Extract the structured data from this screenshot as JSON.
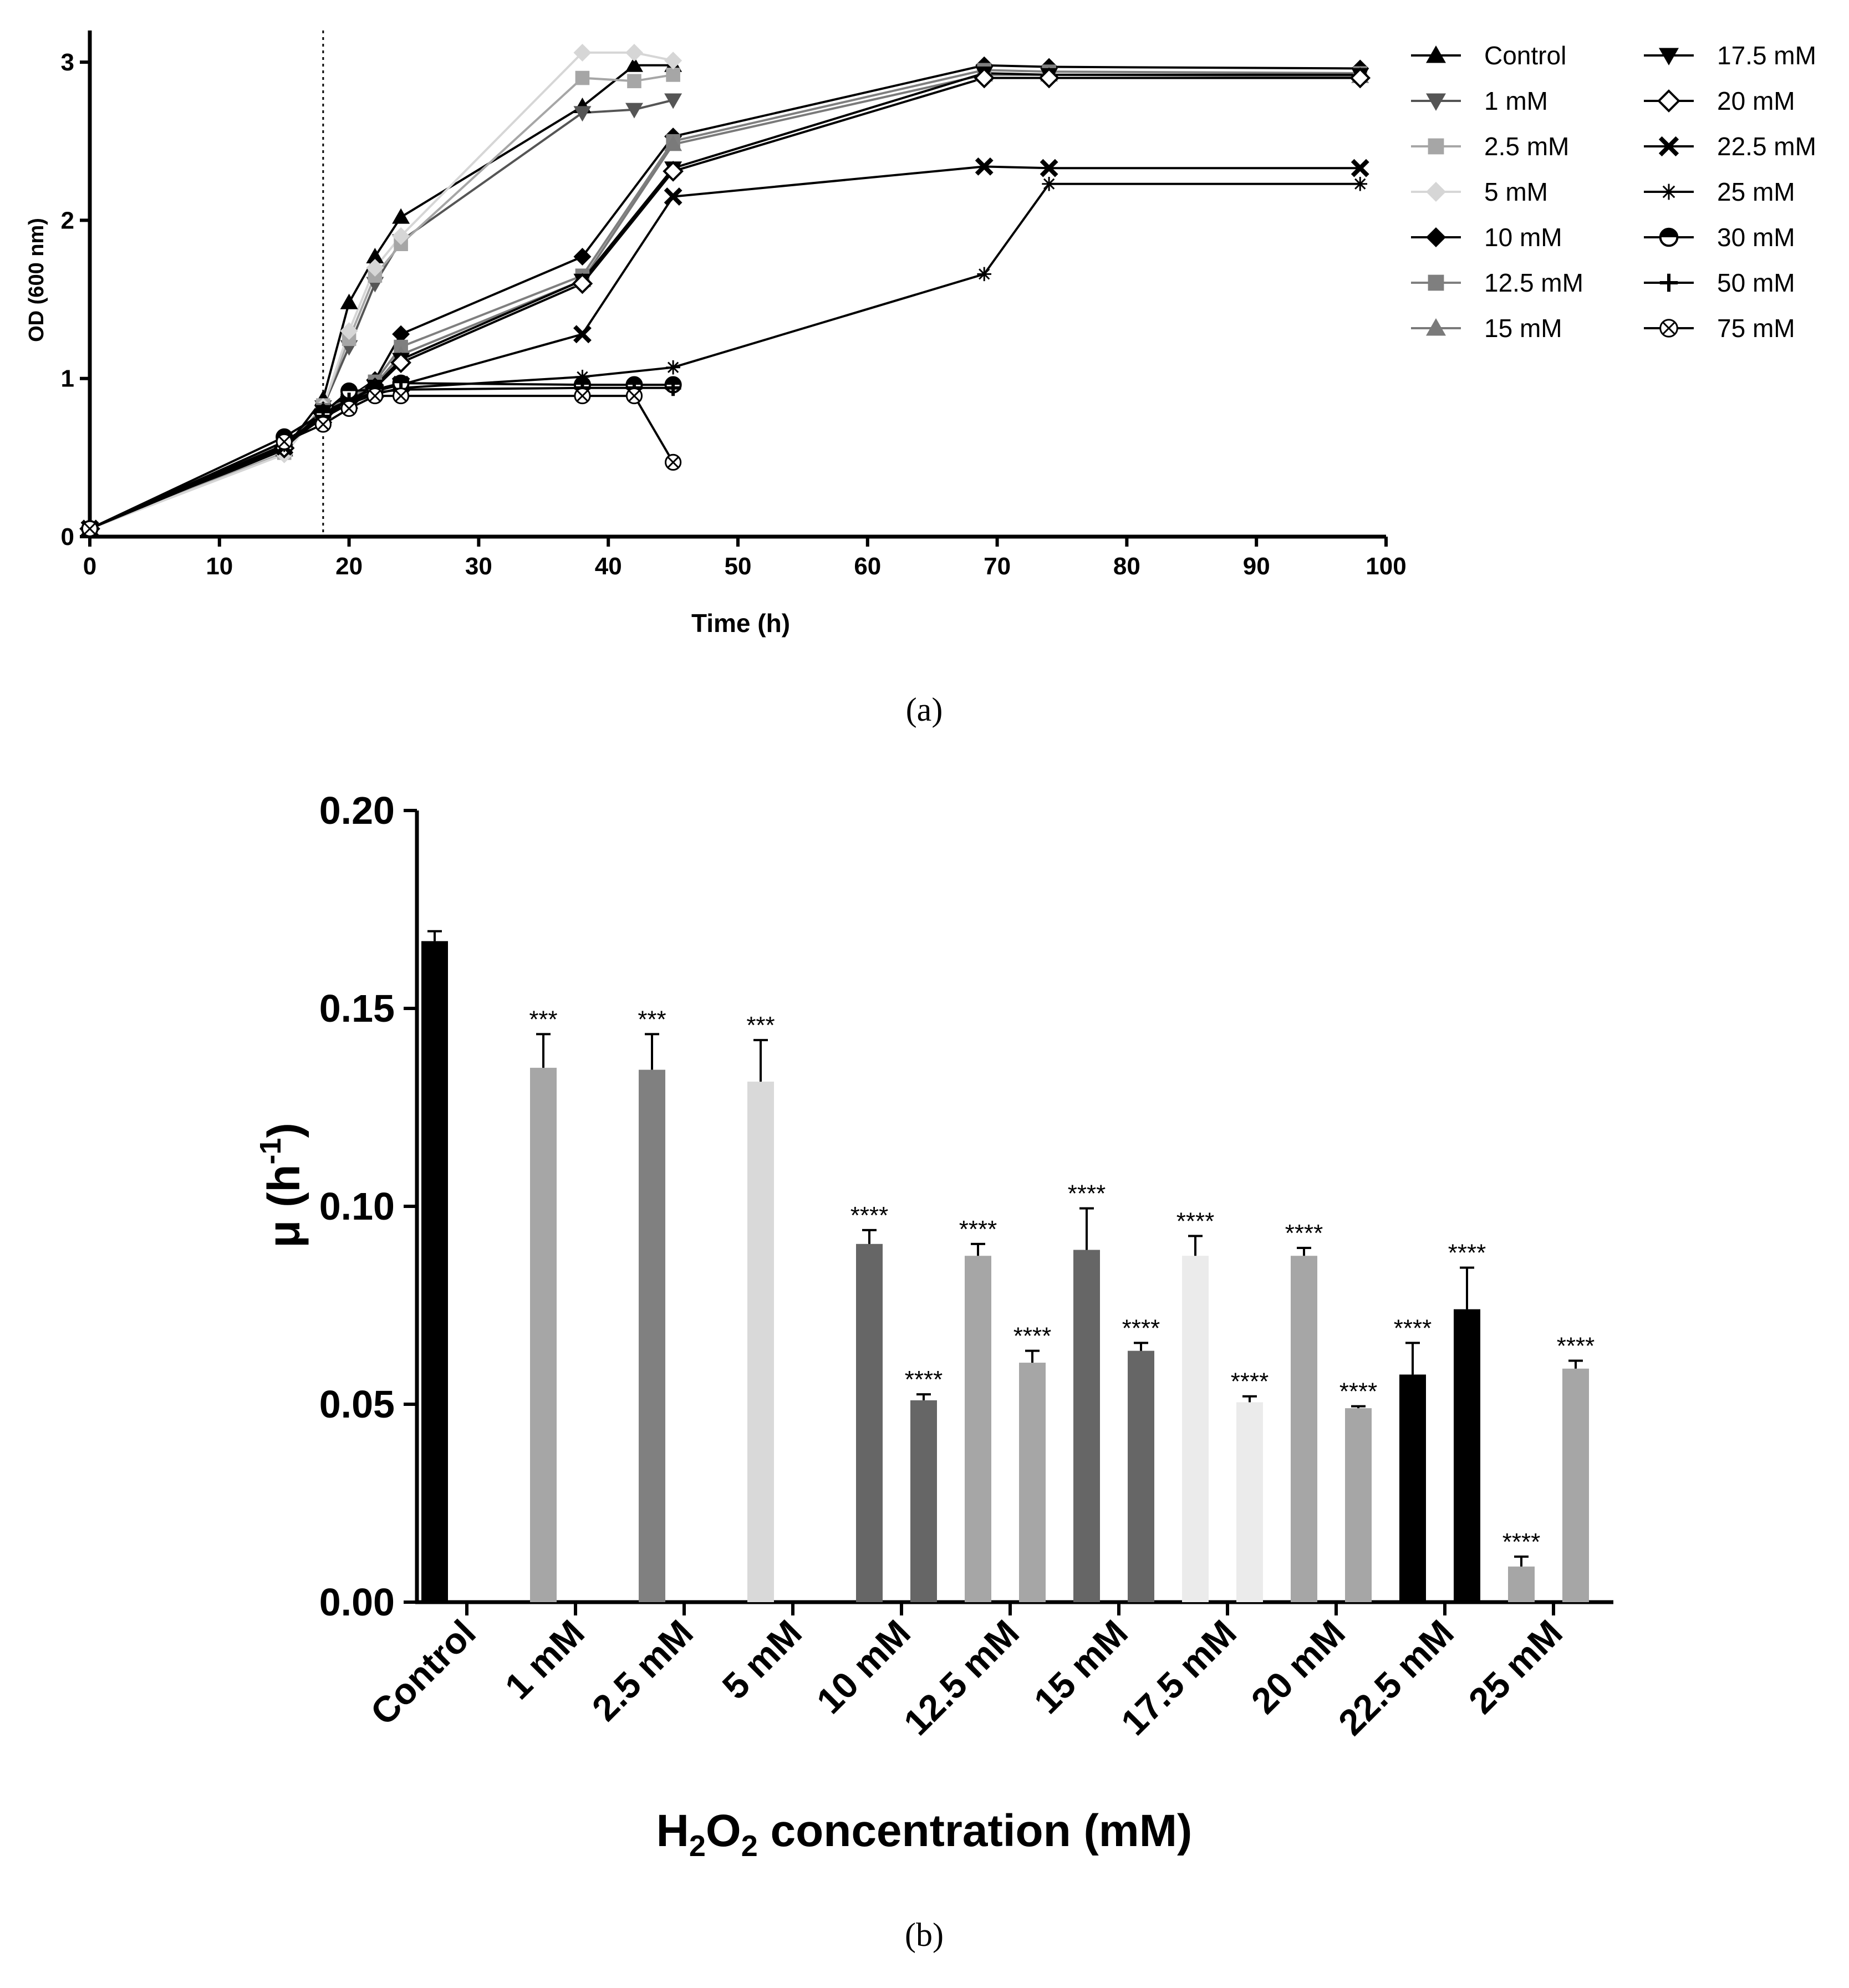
{
  "chart_data": [
    {
      "type": "line",
      "panel_label": "(a)",
      "title": "",
      "xlabel": "Time (h)",
      "ylabel": "OD (600 nm)",
      "xlim": [
        0,
        100
      ],
      "ylim": [
        0,
        3.2
      ],
      "x_ticks": [
        0,
        10,
        20,
        30,
        40,
        50,
        60,
        70,
        80,
        90,
        100
      ],
      "y_ticks": [
        0,
        1,
        2,
        3
      ],
      "vline_x": 18,
      "legend_position": "right",
      "series": [
        {
          "name": "Control",
          "color": "#000000",
          "marker": "triangle-up",
          "x": [
            0,
            15,
            18,
            20,
            22,
            24,
            38,
            42,
            45
          ],
          "y": [
            0.05,
            0.55,
            0.87,
            1.48,
            1.77,
            2.02,
            2.72,
            2.98,
            2.98
          ]
        },
        {
          "name": "1 mM",
          "color": "#555555",
          "marker": "triangle-down",
          "x": [
            0,
            15,
            18,
            20,
            22,
            24,
            38,
            42,
            45
          ],
          "y": [
            0.05,
            0.53,
            0.82,
            1.2,
            1.6,
            1.87,
            2.68,
            2.7,
            2.76
          ]
        },
        {
          "name": "2.5 mM",
          "color": "#a6a6a6",
          "marker": "square",
          "x": [
            0,
            15,
            18,
            20,
            22,
            24,
            38,
            42,
            45
          ],
          "y": [
            0.05,
            0.53,
            0.83,
            1.25,
            1.65,
            1.85,
            2.9,
            2.88,
            2.92
          ]
        },
        {
          "name": "5 mM",
          "color": "#d6d6d6",
          "marker": "diamond",
          "x": [
            0,
            15,
            18,
            20,
            22,
            24,
            38,
            42,
            45
          ],
          "y": [
            0.05,
            0.52,
            0.82,
            1.3,
            1.7,
            1.9,
            3.06,
            3.06,
            3.01
          ]
        },
        {
          "name": "10 mM",
          "color": "#000000",
          "marker": "diamond",
          "x": [
            0,
            15,
            18,
            20,
            22,
            24,
            38,
            45,
            69,
            74,
            98
          ],
          "y": [
            0.05,
            0.58,
            0.8,
            0.88,
            0.99,
            1.28,
            1.77,
            2.53,
            2.98,
            2.97,
            2.96
          ]
        },
        {
          "name": "12.5 mM",
          "color": "#7f7f7f",
          "marker": "square",
          "x": [
            0,
            15,
            18,
            20,
            22,
            24,
            38,
            45,
            69,
            74,
            98
          ],
          "y": [
            0.05,
            0.57,
            0.8,
            0.87,
            0.98,
            1.2,
            1.65,
            2.5,
            2.95,
            2.94,
            2.93
          ]
        },
        {
          "name": "15 mM",
          "color": "#7a7a7a",
          "marker": "triangle-up",
          "x": [
            0,
            15,
            18,
            20,
            22,
            24,
            38,
            45,
            69,
            74,
            98
          ],
          "y": [
            0.05,
            0.56,
            0.79,
            0.86,
            0.96,
            1.15,
            1.62,
            2.48,
            2.92,
            2.92,
            2.91
          ]
        },
        {
          "name": "17.5 mM",
          "color": "#000000",
          "marker": "triangle-down",
          "x": [
            0,
            15,
            18,
            20,
            22,
            24,
            38,
            45,
            69,
            74,
            98
          ],
          "y": [
            0.05,
            0.57,
            0.79,
            0.86,
            0.95,
            1.12,
            1.62,
            2.33,
            2.93,
            2.92,
            2.92
          ]
        },
        {
          "name": "20 mM",
          "color": "#000000",
          "marker": "open-diamond",
          "x": [
            0,
            15,
            18,
            20,
            22,
            24,
            38,
            45,
            69,
            74,
            98
          ],
          "y": [
            0.05,
            0.56,
            0.78,
            0.86,
            0.94,
            1.1,
            1.6,
            2.31,
            2.9,
            2.9,
            2.9
          ]
        },
        {
          "name": "22.5 mM",
          "color": "#000000",
          "marker": "x",
          "x": [
            0,
            15,
            18,
            20,
            22,
            24,
            38,
            45,
            69,
            74,
            98
          ],
          "y": [
            0.05,
            0.57,
            0.76,
            0.85,
            0.92,
            0.96,
            1.28,
            2.15,
            2.34,
            2.33,
            2.33
          ]
        },
        {
          "name": "25 mM",
          "color": "#000000",
          "marker": "asterisk",
          "x": [
            0,
            15,
            18,
            20,
            22,
            24,
            38,
            45,
            69,
            74,
            98
          ],
          "y": [
            0.05,
            0.58,
            0.75,
            0.84,
            0.9,
            0.94,
            1.01,
            1.07,
            1.66,
            2.23,
            2.23
          ]
        },
        {
          "name": "30 mM",
          "color": "#000000",
          "marker": "half-circle",
          "x": [
            0,
            15,
            18,
            20,
            22,
            24,
            38,
            42,
            45
          ],
          "y": [
            0.05,
            0.63,
            0.78,
            0.92,
            0.93,
            0.97,
            0.96,
            0.96,
            0.96
          ]
        },
        {
          "name": "50 mM",
          "color": "#000000",
          "marker": "plus",
          "x": [
            0,
            15,
            18,
            20,
            22,
            24,
            38,
            42,
            45
          ],
          "y": [
            0.05,
            0.6,
            0.76,
            0.86,
            0.91,
            0.93,
            0.94,
            0.94,
            0.94
          ]
        },
        {
          "name": "75 mM",
          "color": "#000000",
          "marker": "circle-x",
          "x": [
            0,
            15,
            18,
            20,
            22,
            24,
            38,
            42,
            45
          ],
          "y": [
            0.05,
            0.6,
            0.71,
            0.81,
            0.89,
            0.89,
            0.89,
            0.89,
            0.47
          ]
        }
      ]
    },
    {
      "type": "bar",
      "panel_label": "(b)",
      "title": "",
      "ylabel": "μ (h-1)",
      "ylabel_main": "μ (h",
      "ylabel_sup": "-1",
      "ylabel_close": ")",
      "xlabel": "H2O2 concentration (mM)",
      "xlabel_parts": [
        "H",
        "2",
        "O",
        "2",
        " concentration (mM)"
      ],
      "ylim": [
        0,
        0.2
      ],
      "y_ticks": [
        "0.00",
        "0.05",
        "0.10",
        "0.15",
        "0.20"
      ],
      "categories": [
        "Control",
        "1 mM",
        "2.5 mM",
        "5 mM",
        "10 mM",
        "12.5 mM",
        "15 mM",
        "17.5 mM",
        "20 mM",
        "22.5 mM",
        "25 mM"
      ],
      "bars": [
        {
          "category": "Control",
          "slot": "left",
          "value": 0.167,
          "error": 0.0025,
          "color": "#000000",
          "label": ""
        },
        {
          "category": "1 mM",
          "slot": "left",
          "value": 0.135,
          "error": 0.0085,
          "color": "#a6a6a6",
          "label": "***"
        },
        {
          "category": "2.5 mM",
          "slot": "left",
          "value": 0.1345,
          "error": 0.009,
          "color": "#808080",
          "label": "***"
        },
        {
          "category": "5 mM",
          "slot": "left",
          "value": 0.1315,
          "error": 0.0105,
          "color": "#d9d9d9",
          "label": "***"
        },
        {
          "category": "10 mM",
          "slot": "left",
          "value": 0.0905,
          "error": 0.0035,
          "color": "#666666",
          "label": "****"
        },
        {
          "category": "10 mM",
          "slot": "right",
          "value": 0.051,
          "error": 0.0015,
          "color": "#666666",
          "label": "****"
        },
        {
          "category": "12.5 mM",
          "slot": "left",
          "value": 0.0875,
          "error": 0.003,
          "color": "#a6a6a6",
          "label": "****"
        },
        {
          "category": "12.5 mM",
          "slot": "right",
          "value": 0.0605,
          "error": 0.003,
          "color": "#a6a6a6",
          "label": "****"
        },
        {
          "category": "15 mM",
          "slot": "left",
          "value": 0.089,
          "error": 0.0105,
          "color": "#666666",
          "label": "****"
        },
        {
          "category": "15 mM",
          "slot": "right",
          "value": 0.0635,
          "error": 0.002,
          "color": "#666666",
          "label": "****"
        },
        {
          "category": "17.5 mM",
          "slot": "left",
          "value": 0.0875,
          "error": 0.005,
          "color": "#ebebeb",
          "label": "****"
        },
        {
          "category": "17.5 mM",
          "slot": "right",
          "value": 0.0505,
          "error": 0.0015,
          "color": "#ebebeb",
          "label": "****"
        },
        {
          "category": "20 mM",
          "slot": "left",
          "value": 0.0875,
          "error": 0.002,
          "color": "#a6a6a6",
          "label": "****"
        },
        {
          "category": "20 mM",
          "slot": "right",
          "value": 0.049,
          "error": 0.0005,
          "color": "#a6a6a6",
          "label": "****"
        },
        {
          "category": "22.5 mM",
          "slot": "left",
          "value": 0.0575,
          "error": 0.008,
          "color": "#000000",
          "label": "****"
        },
        {
          "category": "22.5 mM",
          "slot": "right",
          "value": 0.074,
          "error": 0.0105,
          "color": "#000000",
          "label": "****"
        },
        {
          "category": "25 mM",
          "slot": "left",
          "value": 0.009,
          "error": 0.0025,
          "color": "#a6a6a6",
          "label": "****"
        },
        {
          "category": "25 mM",
          "slot": "right",
          "value": 0.059,
          "error": 0.002,
          "color": "#a6a6a6",
          "label": "****"
        }
      ]
    }
  ]
}
